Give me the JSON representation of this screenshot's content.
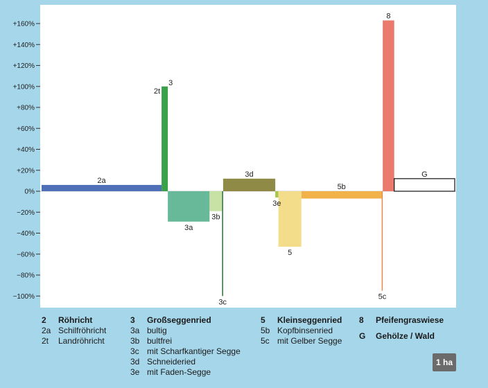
{
  "chart_data": {
    "type": "bar",
    "title": "",
    "xlabel": "",
    "ylabel": "",
    "ylim": [
      -110,
      170
    ],
    "yticks": [
      160,
      140,
      120,
      100,
      80,
      60,
      40,
      20,
      0,
      -20,
      -40,
      -60,
      -80,
      -100
    ],
    "ytick_labels": [
      "+160%",
      "+140%",
      "+120%",
      "+100%",
      "+80%",
      "+60%",
      "+40%",
      "+20%",
      "0%",
      "−20%",
      "−40%",
      "−60%",
      "−80%",
      "−100%"
    ],
    "grid": false,
    "x_unit": "ha",
    "bars": [
      {
        "id": "2a",
        "label": "2a",
        "value": 6,
        "width": 11.5,
        "color": "#4f6fb6",
        "label_pos": "top"
      },
      {
        "id": "2t",
        "label": "2t",
        "value": 100,
        "width": 0.6,
        "color": "#3aa14a",
        "label_pos": "top-left"
      },
      {
        "id": "3a",
        "label": "3a",
        "value": -29,
        "width": 4.0,
        "color": "#68b89a",
        "label_pos": "bottom"
      },
      {
        "id": "3b",
        "label": "3b",
        "value": -19,
        "width": 1.2,
        "color": "#c7e2a4",
        "label_pos": "bottom"
      },
      {
        "id": "3c",
        "label": "3c",
        "value": -100,
        "width": 0.1,
        "color": "#2c6e3a",
        "label_pos": "bottom"
      },
      {
        "id": "3d",
        "label": "3d",
        "value": 12,
        "width": 5.0,
        "color": "#8f8a45",
        "label_pos": "top"
      },
      {
        "id": "3e",
        "label": "3e",
        "value": -6,
        "width": 0.3,
        "color": "#a4c84a",
        "label_pos": "bottom"
      },
      {
        "id": "5",
        "label": "5",
        "value": -53,
        "width": 2.2,
        "color": "#f3dd8a",
        "label_pos": "bottom"
      },
      {
        "id": "5b",
        "label": "5b",
        "value": -7,
        "width": 7.7,
        "color": "#f2b24a",
        "label_pos": "top"
      },
      {
        "id": "5c",
        "label": "5c",
        "value": -95,
        "width": 0.1,
        "color": "#e9884a",
        "label_pos": "bottom"
      },
      {
        "id": "8",
        "label": "8",
        "value": 163,
        "width": 1.1,
        "color": "#ea7a6e",
        "label_pos": "top"
      },
      {
        "id": "G",
        "label": "G",
        "value": 12,
        "width": 5.8,
        "color": "#ffffff",
        "outline": "#111111",
        "label_pos": "top"
      }
    ],
    "extra_labels": [
      {
        "text": "3",
        "attach": "2t",
        "pos": "top-right"
      }
    ]
  },
  "legend": {
    "col1": [
      {
        "code": "2",
        "text": "Röhricht",
        "head": true
      },
      {
        "code": "2a",
        "text": "Schilfröhricht"
      },
      {
        "code": "2t",
        "text": "Landröhricht"
      }
    ],
    "col2": [
      {
        "code": "3",
        "text": "Großseggenried",
        "head": true
      },
      {
        "code": "3a",
        "text": "bultig"
      },
      {
        "code": "3b",
        "text": "bultfrei"
      },
      {
        "code": "3c",
        "text": "mit Scharfkantiger Segge"
      },
      {
        "code": "3d",
        "text": "Schneideried"
      },
      {
        "code": "3e",
        "text": "mit Faden-Segge"
      }
    ],
    "col3": [
      {
        "code": "5",
        "text": "Kleinseggenried",
        "head": true
      },
      {
        "code": "5b",
        "text": "Kopfbinsenried"
      },
      {
        "code": "5c",
        "text": "mit Gelber Segge"
      }
    ],
    "col4": [
      {
        "code": "8",
        "text": "Pfeifengraswiese",
        "head": true
      },
      {
        "code": "G",
        "text": "Gehölze / Wald",
        "head": true
      }
    ]
  },
  "scale_badge": "1 ha"
}
